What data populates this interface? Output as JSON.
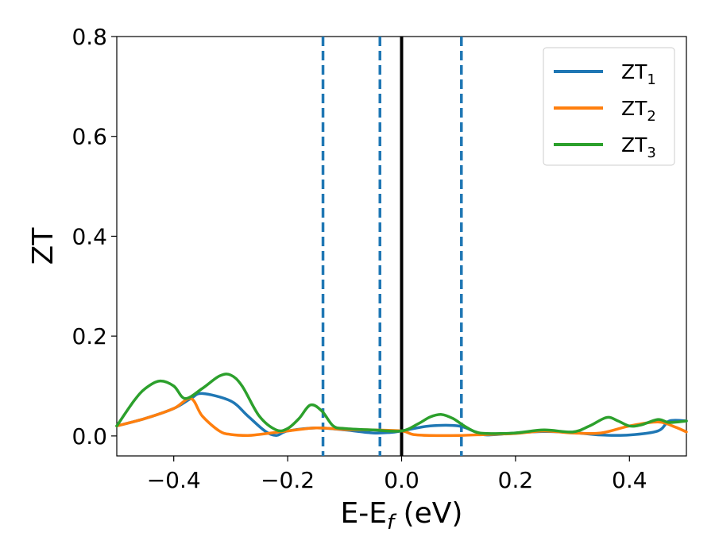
{
  "chart_data": {
    "type": "line",
    "xlabel": "E-E",
    "xlabel_sub": "f",
    "xlabel_unit": " (eV)",
    "ylabel": "ZT",
    "xlim": [
      -0.5,
      0.5
    ],
    "ylim": [
      -0.04,
      0.8
    ],
    "xticks": [
      -0.4,
      -0.2,
      0.0,
      0.2,
      0.4
    ],
    "xtick_labels": [
      "−0.4",
      "−0.2",
      "0.0",
      "0.2",
      "0.4"
    ],
    "yticks": [
      0.0,
      0.2,
      0.4,
      0.6,
      0.8
    ],
    "ytick_labels": [
      "0.0",
      "0.2",
      "0.4",
      "0.6",
      "0.8"
    ],
    "legend_position": "top-right",
    "vertical_lines": [
      {
        "x": -0.138,
        "style": "dashed",
        "color": "#1f77b4"
      },
      {
        "x": -0.038,
        "style": "dashed",
        "color": "#1f77b4"
      },
      {
        "x": 0.0,
        "style": "solid",
        "color": "#000000"
      },
      {
        "x": 0.105,
        "style": "dashed",
        "color": "#1f77b4"
      }
    ],
    "series": [
      {
        "name": "ZT",
        "sub": "1",
        "color": "#1f77b4",
        "x": [
          -0.5,
          -0.45,
          -0.4,
          -0.37,
          -0.35,
          -0.3,
          -0.27,
          -0.24,
          -0.22,
          -0.2,
          -0.15,
          -0.1,
          -0.05,
          -0.02,
          0.0,
          0.05,
          0.1,
          0.13,
          0.15,
          0.2,
          0.25,
          0.3,
          0.35,
          0.4,
          0.45,
          0.47,
          0.5
        ],
        "y": [
          0.02,
          0.035,
          0.055,
          0.075,
          0.085,
          0.07,
          0.04,
          0.01,
          0.001,
          0.01,
          0.016,
          0.012,
          0.006,
          0.007,
          0.01,
          0.02,
          0.02,
          0.008,
          0.002,
          0.006,
          0.009,
          0.007,
          0.002,
          0.002,
          0.01,
          0.03,
          0.03
        ]
      },
      {
        "name": "ZT",
        "sub": "2",
        "color": "#ff7f0e",
        "x": [
          -0.5,
          -0.45,
          -0.4,
          -0.37,
          -0.35,
          -0.32,
          -0.3,
          -0.27,
          -0.25,
          -0.2,
          -0.15,
          -0.1,
          -0.05,
          0.0,
          0.02,
          0.05,
          0.1,
          0.15,
          0.2,
          0.25,
          0.3,
          0.35,
          0.4,
          0.45,
          0.48,
          0.5
        ],
        "y": [
          0.02,
          0.035,
          0.055,
          0.075,
          0.04,
          0.01,
          0.003,
          0.001,
          0.003,
          0.01,
          0.016,
          0.013,
          0.012,
          0.01,
          0.003,
          0.001,
          0.001,
          0.003,
          0.005,
          0.01,
          0.006,
          0.006,
          0.02,
          0.028,
          0.018,
          0.008
        ]
      },
      {
        "name": "ZT",
        "sub": "3",
        "color": "#2ca02c",
        "x": [
          -0.5,
          -0.47,
          -0.45,
          -0.425,
          -0.4,
          -0.38,
          -0.35,
          -0.32,
          -0.3,
          -0.28,
          -0.25,
          -0.22,
          -0.2,
          -0.18,
          -0.16,
          -0.14,
          -0.12,
          -0.1,
          -0.05,
          0.0,
          0.03,
          0.05,
          0.07,
          0.09,
          0.11,
          0.13,
          0.15,
          0.2,
          0.25,
          0.3,
          0.33,
          0.36,
          0.38,
          0.4,
          0.42,
          0.45,
          0.47,
          0.5
        ],
        "y": [
          0.02,
          0.07,
          0.095,
          0.11,
          0.1,
          0.075,
          0.095,
          0.12,
          0.122,
          0.1,
          0.04,
          0.012,
          0.015,
          0.035,
          0.062,
          0.05,
          0.02,
          0.015,
          0.012,
          0.01,
          0.025,
          0.038,
          0.043,
          0.035,
          0.02,
          0.008,
          0.005,
          0.006,
          0.012,
          0.008,
          0.02,
          0.037,
          0.03,
          0.02,
          0.022,
          0.033,
          0.027,
          0.03
        ]
      }
    ]
  }
}
